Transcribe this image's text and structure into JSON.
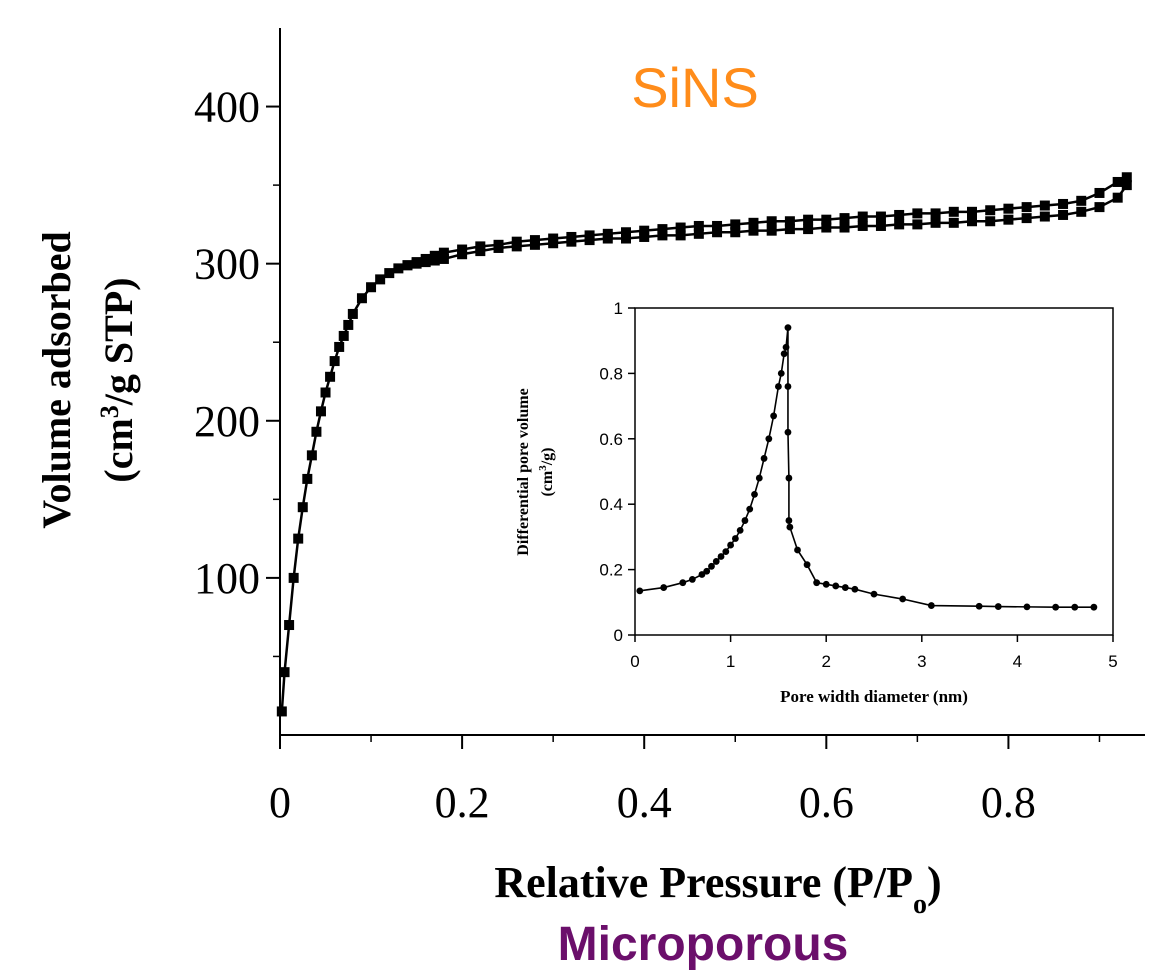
{
  "colors": {
    "annotation_main": "#ff8c1a",
    "annotation_bottom": "#6b0f6b",
    "axis": "#000000",
    "series": "#000000"
  },
  "chart_data": [
    {
      "type": "line",
      "role": "main",
      "annotation": "SiNS",
      "caption": "Microporous",
      "xlabel": "Relative Pressure (P/P",
      "xlabel_sub": "o",
      "xlabel_end": ")",
      "ylabel_line1": "Volume adsorbed",
      "ylabel_line2_a": "(cm",
      "ylabel_line2_sup": "3",
      "ylabel_line2_b": "/g STP)",
      "xlim": [
        0,
        0.95
      ],
      "ylim": [
        0,
        450
      ],
      "x_ticks": [
        0,
        0.2,
        0.4,
        0.6,
        0.8
      ],
      "x_tick_labels": [
        "0",
        "0.2",
        "0.4",
        "0.6",
        "0.8"
      ],
      "y_ticks": [
        100,
        200,
        300,
        400
      ],
      "y_tick_labels": [
        "100",
        "200",
        "300",
        "400"
      ],
      "grid": false,
      "marker": "square",
      "series": [
        {
          "x": [
            0.002,
            0.005,
            0.01,
            0.015,
            0.02,
            0.025,
            0.03,
            0.035,
            0.04,
            0.045,
            0.05,
            0.055,
            0.06,
            0.065,
            0.07,
            0.075,
            0.08,
            0.09,
            0.1,
            0.11,
            0.12,
            0.13,
            0.14,
            0.15,
            0.16,
            0.17,
            0.18,
            0.2,
            0.22,
            0.24,
            0.26,
            0.28,
            0.3,
            0.32,
            0.34,
            0.36,
            0.38,
            0.4,
            0.42,
            0.44,
            0.46,
            0.48,
            0.5,
            0.52,
            0.54,
            0.56,
            0.58,
            0.6,
            0.62,
            0.64,
            0.66,
            0.68,
            0.7,
            0.72,
            0.74,
            0.76,
            0.78,
            0.8,
            0.82,
            0.84,
            0.86,
            0.88,
            0.9,
            0.92,
            0.93
          ],
          "y": [
            15,
            40,
            70,
            100,
            125,
            145,
            163,
            178,
            193,
            206,
            218,
            228,
            238,
            247,
            254,
            261,
            268,
            278,
            285,
            290,
            294,
            297,
            299,
            300,
            301,
            302,
            303,
            306,
            308,
            310,
            311,
            312,
            313,
            314,
            315,
            316,
            316,
            317,
            318,
            318,
            319,
            320,
            320,
            321,
            321,
            322,
            322,
            323,
            323,
            324,
            324,
            325,
            325,
            326,
            326,
            327,
            327,
            328,
            329,
            330,
            331,
            333,
            336,
            342,
            350
          ]
        },
        {
          "x": [
            0.93,
            0.92,
            0.9,
            0.88,
            0.86,
            0.84,
            0.82,
            0.8,
            0.78,
            0.76,
            0.74,
            0.72,
            0.7,
            0.68,
            0.66,
            0.64,
            0.62,
            0.6,
            0.58,
            0.56,
            0.54,
            0.52,
            0.5,
            0.48,
            0.46,
            0.44,
            0.42,
            0.4,
            0.38,
            0.36,
            0.34,
            0.32,
            0.3,
            0.28,
            0.26,
            0.24,
            0.22,
            0.2,
            0.18,
            0.17,
            0.16,
            0.15,
            0.14
          ],
          "y": [
            355,
            352,
            345,
            340,
            338,
            337,
            336,
            335,
            334,
            333,
            333,
            332,
            332,
            331,
            330,
            330,
            329,
            328,
            328,
            327,
            327,
            326,
            325,
            324,
            324,
            323,
            322,
            321,
            320,
            319,
            318,
            317,
            316,
            315,
            314,
            312,
            311,
            309,
            307,
            305,
            303,
            301,
            299
          ]
        }
      ]
    },
    {
      "type": "line",
      "role": "inset",
      "xlabel": "Pore width diameter (nm)",
      "ylabel_line1": "Differential pore volume",
      "ylabel_line2_a": "(cm",
      "ylabel_line2_sup": "3",
      "ylabel_line2_b": "/g)",
      "xlim": [
        0,
        5
      ],
      "ylim": [
        0,
        1
      ],
      "x_ticks": [
        0,
        1,
        2,
        3,
        4,
        5
      ],
      "x_tick_labels": [
        "0",
        "1",
        "2",
        "3",
        "4",
        "5"
      ],
      "y_ticks": [
        0,
        0.2,
        0.4,
        0.6,
        0.8,
        1
      ],
      "y_tick_labels": [
        "0",
        "0.2",
        "0.4",
        "0.6",
        "0.8",
        "1"
      ],
      "grid": false,
      "marker": "circle",
      "series": [
        {
          "x": [
            0.05,
            0.3,
            0.5,
            0.6,
            0.7,
            0.75,
            0.8,
            0.85,
            0.9,
            0.95,
            1.0,
            1.05,
            1.1,
            1.15,
            1.2,
            1.25,
            1.3,
            1.35,
            1.4,
            1.45,
            1.5,
            1.53,
            1.56,
            1.58,
            1.6,
            1.6,
            1.6,
            1.61,
            1.61,
            1.62,
            1.7,
            1.8,
            1.9,
            2.0,
            2.1,
            2.2,
            2.3,
            2.5,
            2.8,
            3.1,
            3.6,
            3.8,
            4.1,
            4.4,
            4.6,
            4.8
          ],
          "y": [
            0.135,
            0.145,
            0.16,
            0.17,
            0.185,
            0.195,
            0.21,
            0.225,
            0.24,
            0.255,
            0.275,
            0.295,
            0.32,
            0.35,
            0.385,
            0.43,
            0.48,
            0.54,
            0.6,
            0.67,
            0.76,
            0.8,
            0.86,
            0.88,
            0.94,
            0.76,
            0.62,
            0.48,
            0.35,
            0.33,
            0.26,
            0.215,
            0.16,
            0.155,
            0.15,
            0.145,
            0.14,
            0.125,
            0.11,
            0.09,
            0.088,
            0.087,
            0.086,
            0.085,
            0.085,
            0.085
          ]
        }
      ]
    }
  ]
}
